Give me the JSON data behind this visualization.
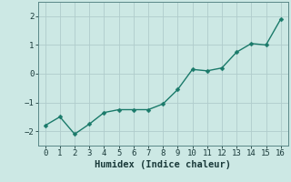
{
  "x": [
    0,
    1,
    2,
    3,
    4,
    5,
    6,
    7,
    8,
    9,
    10,
    11,
    12,
    13,
    14,
    15,
    16
  ],
  "y": [
    -1.8,
    -1.5,
    -2.1,
    -1.75,
    -1.35,
    -1.25,
    -1.25,
    -1.25,
    -1.05,
    -0.55,
    0.15,
    0.1,
    0.2,
    0.75,
    1.05,
    1.0,
    1.9
  ],
  "line_color": "#1a7a6a",
  "marker": "D",
  "marker_size": 2.5,
  "xlabel": "Humidex (Indice chaleur)",
  "background_color": "#cce8e4",
  "grid_color": "#b0cccc",
  "xlim": [
    -0.5,
    16.5
  ],
  "ylim": [
    -2.5,
    2.5
  ],
  "yticks": [
    -2,
    -1,
    0,
    1,
    2
  ],
  "xticks": [
    0,
    1,
    2,
    3,
    4,
    5,
    6,
    7,
    8,
    9,
    10,
    11,
    12,
    13,
    14,
    15,
    16
  ],
  "xlabel_fontsize": 7.5,
  "tick_fontsize": 6.5,
  "line_width": 1.0
}
